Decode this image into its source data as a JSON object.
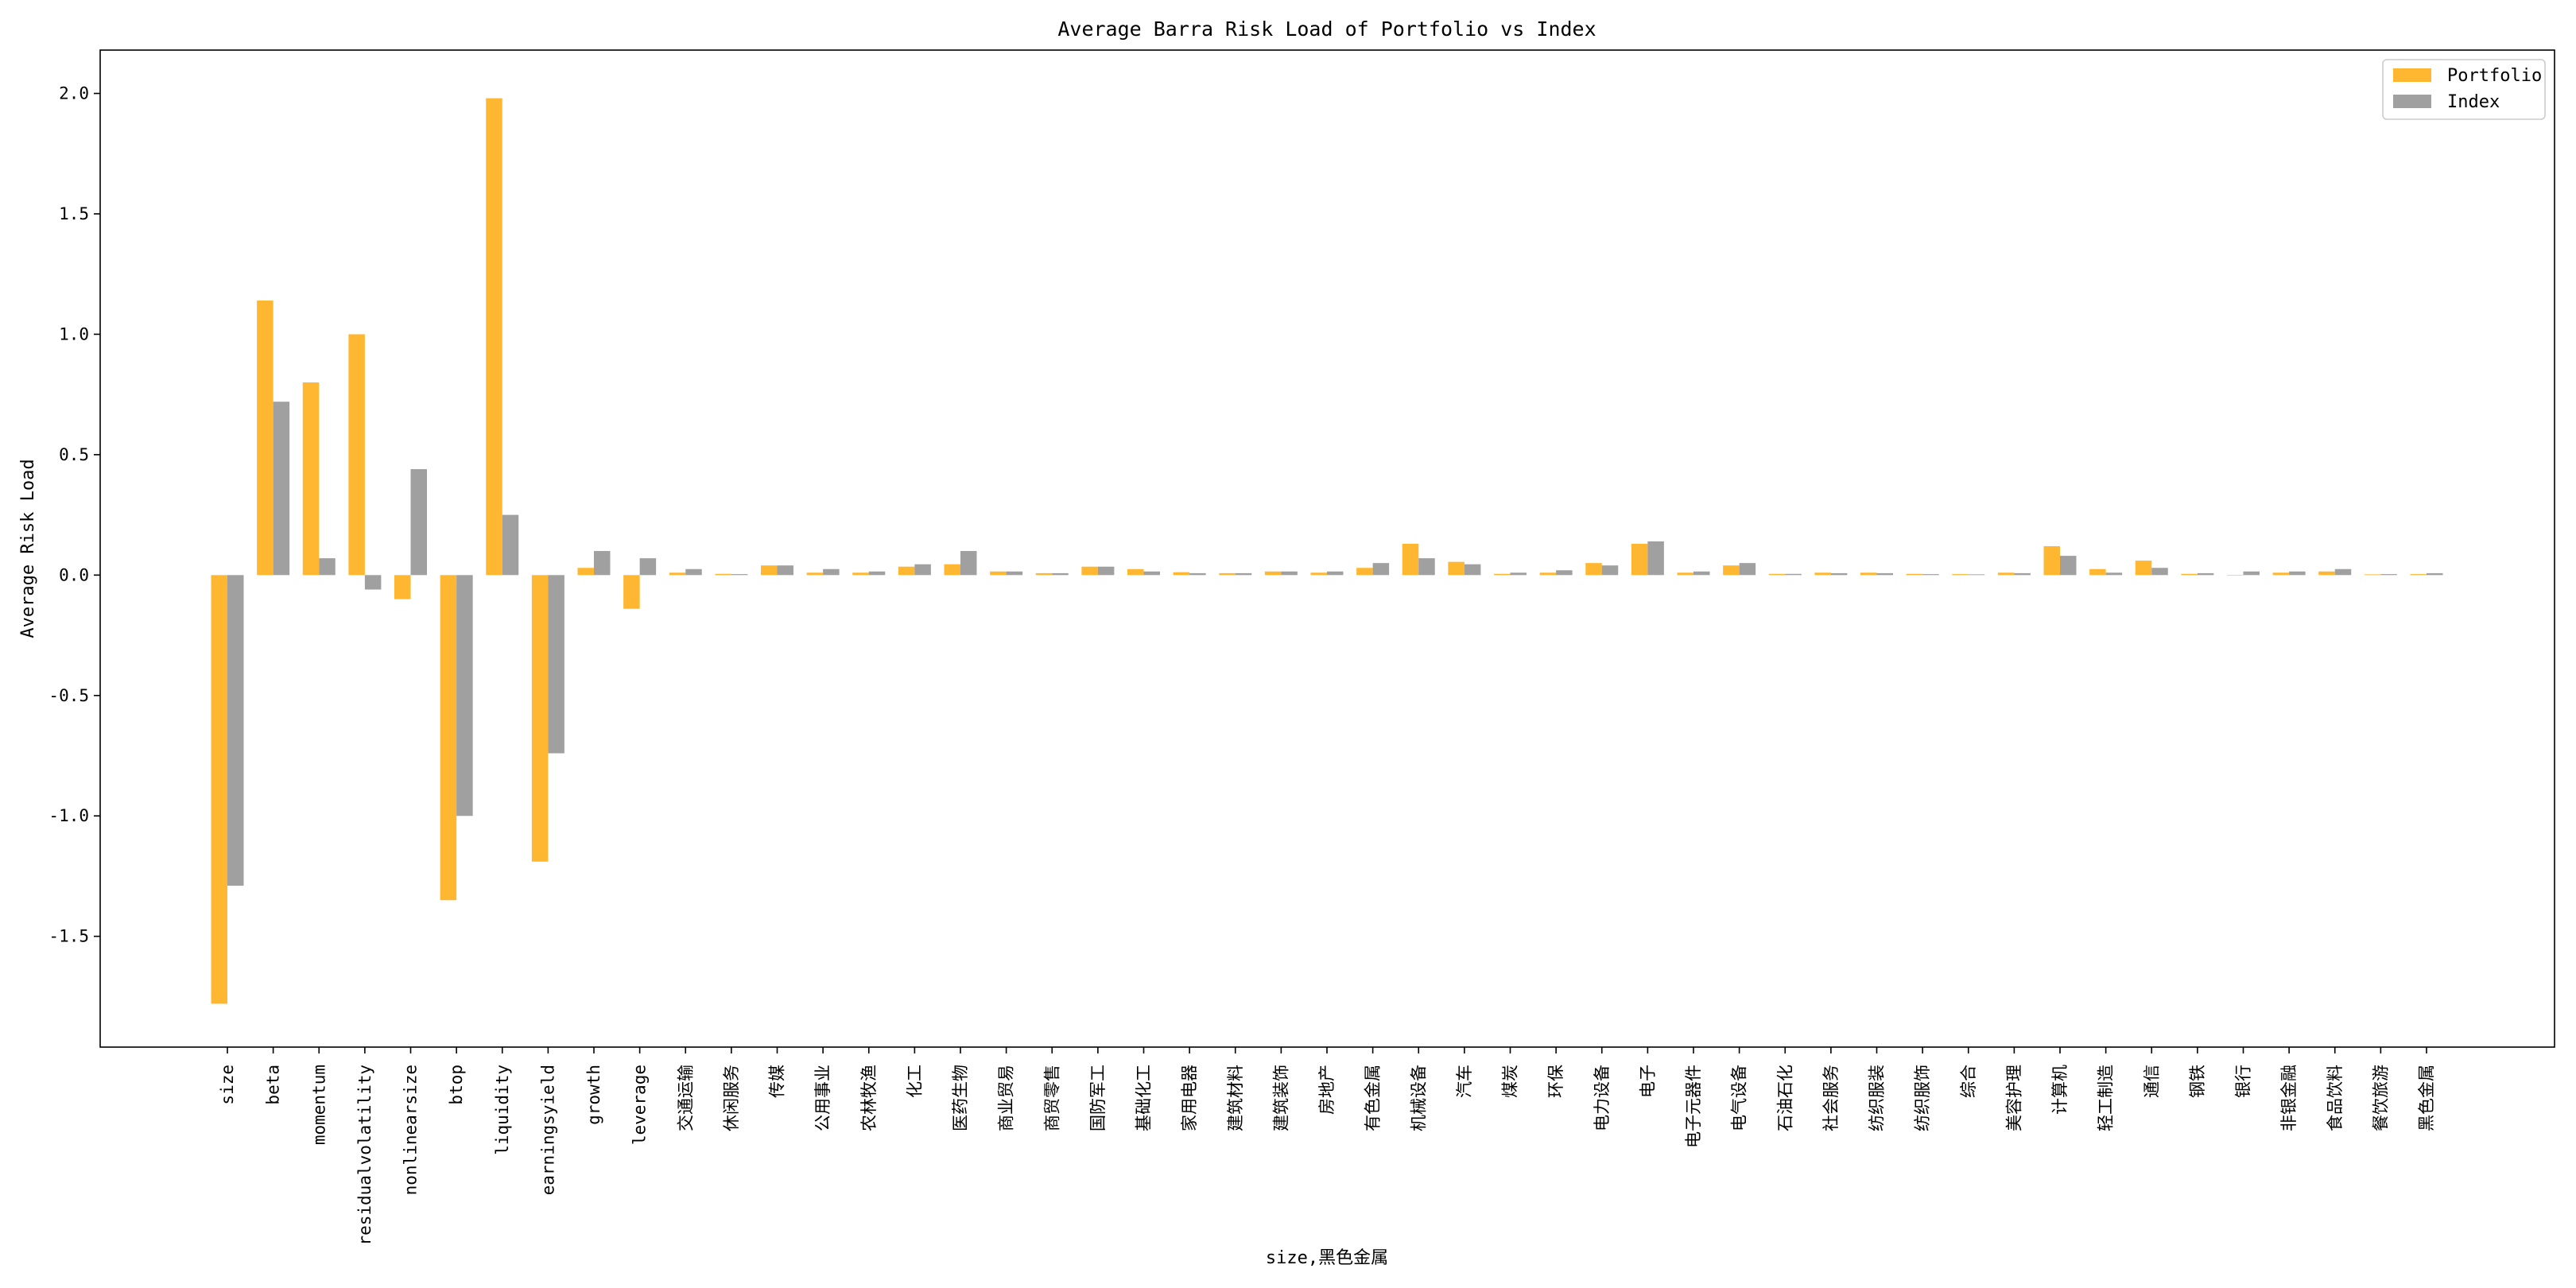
{
  "chart_data": {
    "type": "bar",
    "title": "Average Barra Risk Load of Portfolio vs Index",
    "xlabel": "size,黑色金属",
    "ylabel": "Average Risk Load",
    "ylim": [
      -1.96,
      2.18
    ],
    "yticks": [
      -1.5,
      -1.0,
      -0.5,
      0.0,
      0.5,
      1.0,
      1.5,
      2.0
    ],
    "ytick_labels": [
      "-1.5",
      "-1.0",
      "-0.5",
      "0.0",
      "0.5",
      "1.0",
      "1.5",
      "2.0"
    ],
    "grid": false,
    "legend_position": "top-right",
    "categories": [
      "size",
      "beta",
      "momentum",
      "residualvolatility",
      "nonlinearsize",
      "btop",
      "liquidity",
      "earningsyield",
      "growth",
      "leverage",
      "交通运输",
      "休闲服务",
      "传媒",
      "公用事业",
      "农林牧渔",
      "化工",
      "医药生物",
      "商业贸易",
      "商贸零售",
      "国防军工",
      "基础化工",
      "家用电器",
      "建筑材料",
      "建筑装饰",
      "房地产",
      "有色金属",
      "机械设备",
      "汽车",
      "煤炭",
      "环保",
      "电力设备",
      "电子",
      "电子元器件",
      "电气设备",
      "石油石化",
      "社会服务",
      "纺织服装",
      "纺织服饰",
      "综合",
      "美容护理",
      "计算机",
      "轻工制造",
      "通信",
      "钢铁",
      "银行",
      "非银金融",
      "食品饮料",
      "餐饮旅游",
      "黑色金属"
    ],
    "series": [
      {
        "name": "Portfolio",
        "color": "#FFB732",
        "values": [
          -1.78,
          1.14,
          0.8,
          1.0,
          -0.1,
          -1.35,
          1.98,
          -1.19,
          0.03,
          -0.14,
          0.01,
          0.005,
          0.04,
          0.01,
          0.01,
          0.035,
          0.045,
          0.015,
          0.008,
          0.035,
          0.025,
          0.012,
          0.008,
          0.015,
          0.01,
          0.03,
          0.13,
          0.055,
          0.005,
          0.01,
          0.05,
          0.13,
          0.01,
          0.04,
          0.005,
          0.01,
          0.01,
          0.005,
          0.004,
          0.01,
          0.12,
          0.025,
          0.06,
          0.005,
          0.0,
          0.01,
          0.015,
          0.003,
          0.004
        ]
      },
      {
        "name": "Index",
        "color": "#A0A0A0",
        "values": [
          -1.29,
          0.72,
          0.07,
          -0.06,
          0.44,
          -1.0,
          0.25,
          -0.74,
          0.1,
          0.07,
          0.025,
          0.004,
          0.04,
          0.025,
          0.015,
          0.045,
          0.1,
          0.015,
          0.008,
          0.035,
          0.015,
          0.008,
          0.008,
          0.015,
          0.015,
          0.05,
          0.07,
          0.045,
          0.01,
          0.02,
          0.04,
          0.14,
          0.015,
          0.05,
          0.005,
          0.008,
          0.008,
          0.004,
          0.003,
          0.008,
          0.08,
          0.01,
          0.03,
          0.008,
          0.015,
          0.015,
          0.025,
          0.004,
          0.008
        ]
      }
    ]
  }
}
